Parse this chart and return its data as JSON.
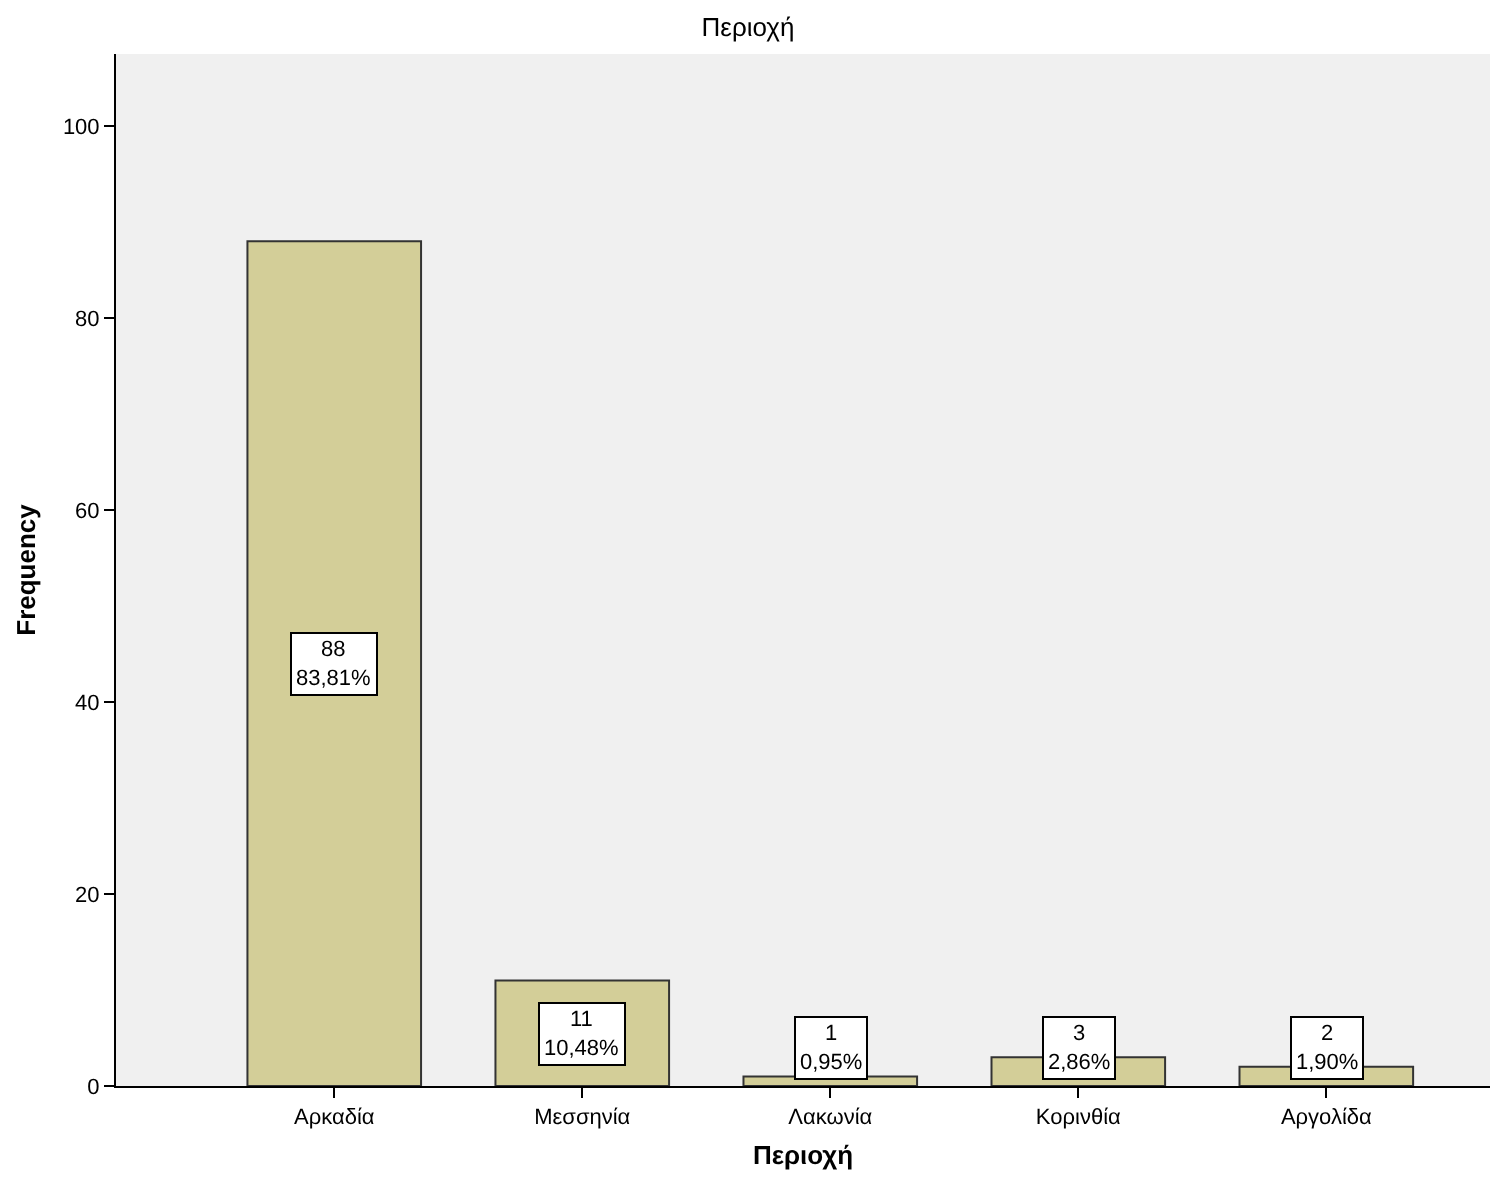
{
  "chart_data": {
    "type": "bar",
    "title": "Περιοχή",
    "xlabel": "Περιοχή",
    "ylabel": "Frequency",
    "categories": [
      "Αρκαδία",
      "Μεσσηνία",
      "Λακωνία",
      "Κορινθία",
      "Αργολίδα"
    ],
    "values": [
      88,
      11,
      1,
      3,
      2
    ],
    "value_labels": [
      "88\n83,81%",
      "11\n10,48%",
      "1\n0,95%",
      "3\n2,86%",
      "2\n1,90%"
    ],
    "color": "#d3ce98",
    "ylim": [
      0,
      107.5
    ],
    "yticks": [
      0,
      20,
      40,
      60,
      80,
      100
    ],
    "grid": false,
    "legend": false
  }
}
